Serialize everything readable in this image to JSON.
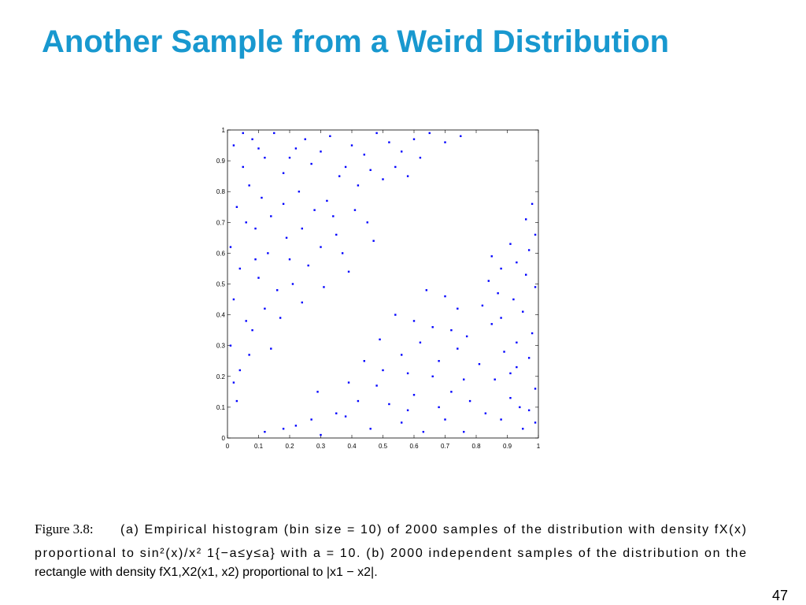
{
  "title": "Another Sample from a Weird Distribution",
  "chart_data": {
    "type": "scatter",
    "color": "#0000ff",
    "xlim": [
      0,
      1
    ],
    "ylim": [
      0,
      1
    ],
    "xticks": [
      0,
      0.1,
      0.2,
      0.3,
      0.4,
      0.5,
      0.6,
      0.7,
      0.8,
      0.9,
      1
    ],
    "yticks": [
      0,
      0.1,
      0.2,
      0.3,
      0.4,
      0.5,
      0.6,
      0.7,
      0.8,
      0.9,
      1
    ],
    "x": [
      0.02,
      0.05,
      0.08,
      0.12,
      0.03,
      0.07,
      0.15,
      0.18,
      0.22,
      0.25,
      0.01,
      0.04,
      0.09,
      0.11,
      0.14,
      0.19,
      0.23,
      0.27,
      0.3,
      0.33,
      0.36,
      0.4,
      0.44,
      0.48,
      0.52,
      0.56,
      0.6,
      0.65,
      0.02,
      0.06,
      0.1,
      0.13,
      0.16,
      0.2,
      0.24,
      0.28,
      0.32,
      0.35,
      0.38,
      0.42,
      0.46,
      0.5,
      0.54,
      0.01,
      0.04,
      0.08,
      0.12,
      0.17,
      0.21,
      0.26,
      0.3,
      0.34,
      0.37,
      0.41,
      0.45,
      0.03,
      0.07,
      0.02,
      0.14,
      0.24,
      0.31,
      0.39,
      0.47,
      0.58,
      0.62,
      0.7,
      0.75,
      0.05,
      0.1,
      0.2,
      0.06,
      0.18,
      0.09,
      0.95,
      0.88,
      0.97,
      0.91,
      0.76,
      0.83,
      0.99,
      0.86,
      0.93,
      0.97,
      0.63,
      0.56,
      0.68,
      0.78,
      0.72,
      0.66,
      0.81,
      0.89,
      0.93,
      0.98,
      0.85,
      0.95,
      0.92,
      0.99,
      0.96,
      0.93,
      0.97,
      0.99,
      0.46,
      0.38,
      0.52,
      0.6,
      0.48,
      0.58,
      0.68,
      0.74,
      0.77,
      0.66,
      0.88,
      0.82,
      0.87,
      0.84,
      0.88,
      0.3,
      0.22,
      0.35,
      0.42,
      0.39,
      0.5,
      0.56,
      0.62,
      0.72,
      0.6,
      0.74,
      0.7,
      0.12,
      0.27,
      0.18,
      0.29,
      0.44,
      0.49,
      0.54,
      0.64,
      0.85,
      0.91,
      0.96,
      0.98,
      0.99,
      0.94,
      0.91,
      0.7,
      0.76,
      0.58
    ],
    "values": [
      0.95,
      0.88,
      0.97,
      0.91,
      0.75,
      0.82,
      0.99,
      0.86,
      0.94,
      0.97,
      0.62,
      0.55,
      0.68,
      0.78,
      0.72,
      0.65,
      0.8,
      0.89,
      0.93,
      0.98,
      0.85,
      0.95,
      0.92,
      0.99,
      0.96,
      0.93,
      0.97,
      0.99,
      0.45,
      0.38,
      0.52,
      0.6,
      0.48,
      0.58,
      0.68,
      0.74,
      0.77,
      0.66,
      0.88,
      0.82,
      0.87,
      0.84,
      0.88,
      0.3,
      0.22,
      0.35,
      0.42,
      0.39,
      0.5,
      0.56,
      0.62,
      0.72,
      0.6,
      0.74,
      0.7,
      0.12,
      0.27,
      0.18,
      0.29,
      0.44,
      0.49,
      0.54,
      0.64,
      0.85,
      0.91,
      0.96,
      0.98,
      0.99,
      0.94,
      0.91,
      0.7,
      0.76,
      0.58,
      0.03,
      0.06,
      0.09,
      0.13,
      0.02,
      0.08,
      0.16,
      0.19,
      0.23,
      0.26,
      0.02,
      0.05,
      0.1,
      0.12,
      0.15,
      0.2,
      0.24,
      0.28,
      0.31,
      0.34,
      0.37,
      0.41,
      0.45,
      0.49,
      0.53,
      0.57,
      0.61,
      0.66,
      0.03,
      0.07,
      0.11,
      0.14,
      0.17,
      0.21,
      0.25,
      0.29,
      0.33,
      0.36,
      0.39,
      0.43,
      0.47,
      0.51,
      0.55,
      0.01,
      0.04,
      0.08,
      0.12,
      0.18,
      0.22,
      0.27,
      0.31,
      0.35,
      0.38,
      0.42,
      0.46,
      0.02,
      0.06,
      0.03,
      0.15,
      0.25,
      0.32,
      0.4,
      0.48,
      0.59,
      0.63,
      0.71,
      0.76,
      0.05,
      0.1,
      0.21,
      0.06,
      0.19,
      0.09
    ]
  },
  "caption": {
    "label": "Figure 3.8:",
    "lines": [
      "(a) Empirical histogram (bin size = 10) of 2000 samples of the distribution with density fX(x)",
      "proportional to sin²(x)/x² 1{−a≤y≤a} with a = 10. (b) 2000 independent samples of the distribution on the",
      "rectangle with density fX1,X2(x1, x2) proportional to |x1 − x2|."
    ]
  },
  "page_number": "47"
}
